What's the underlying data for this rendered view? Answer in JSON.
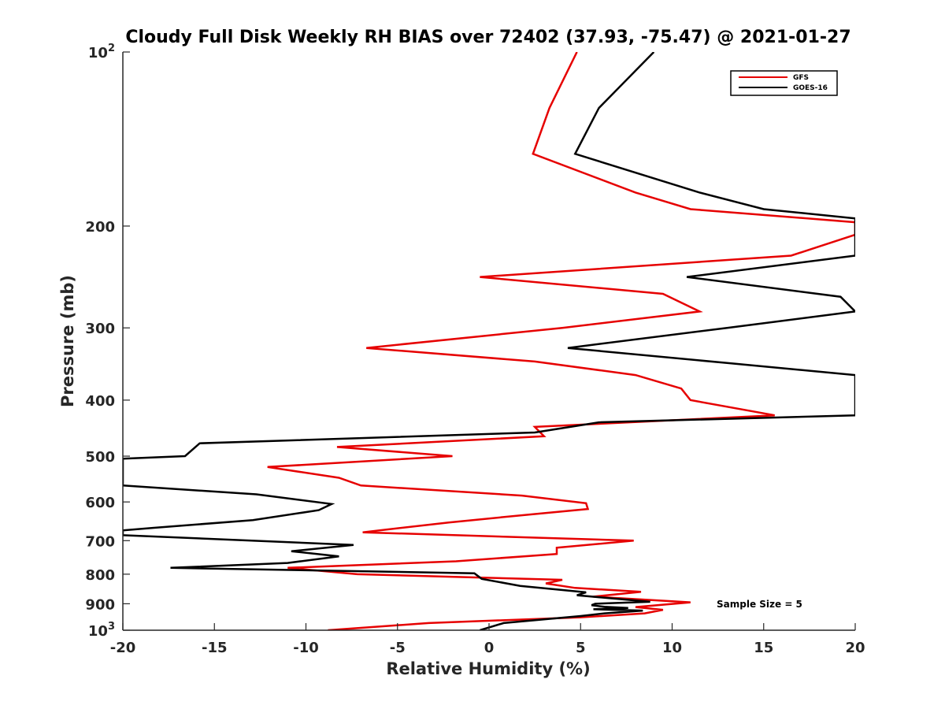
{
  "chart_data": {
    "type": "line",
    "title": "Cloudy Full Disk Weekly RH BIAS over 72402 (37.93, -75.47) @ 2021-01-27",
    "xlabel": "Relative Humidity (%)",
    "ylabel": "Pressure (mb)",
    "xlim": [
      -20,
      20
    ],
    "ylim": [
      100,
      1000
    ],
    "yscale": "log",
    "y_reversed": true,
    "xticks": [
      -20,
      -15,
      -10,
      -5,
      0,
      5,
      10,
      15,
      20
    ],
    "yticks": [
      {
        "value": 100,
        "base": "10",
        "exp": "2"
      },
      {
        "value": 200,
        "label": "200"
      },
      {
        "value": 300,
        "label": "300"
      },
      {
        "value": 400,
        "label": "400"
      },
      {
        "value": 500,
        "label": "500"
      },
      {
        "value": 600,
        "label": "600"
      },
      {
        "value": 700,
        "label": "700"
      },
      {
        "value": 800,
        "label": "800"
      },
      {
        "value": 900,
        "label": "900"
      },
      {
        "value": 1000,
        "base": "10",
        "exp": "3"
      }
    ],
    "grid": false,
    "legend_position": "top-right",
    "annotation": "Sample Size = 5",
    "series": [
      {
        "name": "GFS",
        "color": "#e60000",
        "points": [
          [
            4.8,
            100
          ],
          [
            3.3,
            125
          ],
          [
            2.4,
            150
          ],
          [
            8.0,
            175
          ],
          [
            11.0,
            187
          ],
          [
            20.0,
            197
          ],
          [
            20.0,
            207
          ],
          [
            16.5,
            225
          ],
          [
            -0.5,
            245
          ],
          [
            9.5,
            262
          ],
          [
            11.5,
            281
          ],
          [
            4.0,
            300
          ],
          [
            -6.7,
            325
          ],
          [
            2.5,
            343
          ],
          [
            8.0,
            362
          ],
          [
            10.5,
            382
          ],
          [
            11.0,
            400
          ],
          [
            15.6,
            425
          ],
          [
            2.5,
            445
          ],
          [
            3.0,
            462
          ],
          [
            -8.3,
            482
          ],
          [
            -2.0,
            500
          ],
          [
            -12.1,
            522
          ],
          [
            -8.2,
            545
          ],
          [
            -7.0,
            562
          ],
          [
            1.8,
            585
          ],
          [
            5.3,
            603
          ],
          [
            5.4,
            617
          ],
          [
            2.4,
            630
          ],
          [
            -2.2,
            651
          ],
          [
            -6.9,
            677
          ],
          [
            7.9,
            700
          ],
          [
            3.7,
            720
          ],
          [
            3.7,
            738
          ],
          [
            -1.8,
            760
          ],
          [
            -11.0,
            780
          ],
          [
            -7.2,
            800
          ],
          [
            4.0,
            818
          ],
          [
            3.1,
            830
          ],
          [
            4.7,
            845
          ],
          [
            8.3,
            858
          ],
          [
            5.7,
            875
          ],
          [
            11.0,
            895
          ],
          [
            8.0,
            912
          ],
          [
            9.5,
            922
          ],
          [
            8.5,
            935
          ],
          [
            5.0,
            950
          ],
          [
            -3.3,
            972
          ],
          [
            -8.8,
            1000
          ]
        ]
      },
      {
        "name": "GOES-16",
        "color": "#000000",
        "points": [
          [
            9.0,
            100
          ],
          [
            6.0,
            125
          ],
          [
            4.7,
            150
          ],
          [
            11.5,
            175
          ],
          [
            15.0,
            187
          ],
          [
            20.0,
            194
          ],
          [
            20.0,
            225
          ],
          [
            10.8,
            245
          ],
          [
            19.2,
            265
          ],
          [
            20.0,
            281
          ],
          [
            13.0,
            300
          ],
          [
            4.3,
            325
          ],
          [
            13.0,
            345
          ],
          [
            20.0,
            362
          ],
          [
            20.0,
            425
          ],
          [
            6.0,
            437
          ],
          [
            2.5,
            455
          ],
          [
            -15.8,
            475
          ],
          [
            -16.6,
            500
          ],
          [
            -20.0,
            505
          ],
          [
            -20.0,
            562
          ],
          [
            -12.7,
            582
          ],
          [
            -8.6,
            605
          ],
          [
            -9.3,
            620
          ],
          [
            -12.9,
            645
          ],
          [
            -18.3,
            665
          ],
          [
            -20.0,
            672
          ],
          [
            -20.0,
            685
          ],
          [
            -7.4,
            712
          ],
          [
            -10.8,
            730
          ],
          [
            -8.2,
            745
          ],
          [
            -11.0,
            765
          ],
          [
            -17.4,
            780
          ],
          [
            -0.8,
            797
          ],
          [
            -0.4,
            815
          ],
          [
            1.7,
            838
          ],
          [
            5.3,
            860
          ],
          [
            4.8,
            870
          ],
          [
            8.8,
            893
          ],
          [
            5.8,
            900
          ],
          [
            5.6,
            905
          ],
          [
            6.3,
            911
          ],
          [
            7.6,
            915
          ],
          [
            5.7,
            920
          ],
          [
            8.4,
            925
          ],
          [
            6.3,
            935
          ],
          [
            5.0,
            945
          ],
          [
            0.8,
            972
          ],
          [
            -0.5,
            1000
          ]
        ]
      }
    ]
  }
}
